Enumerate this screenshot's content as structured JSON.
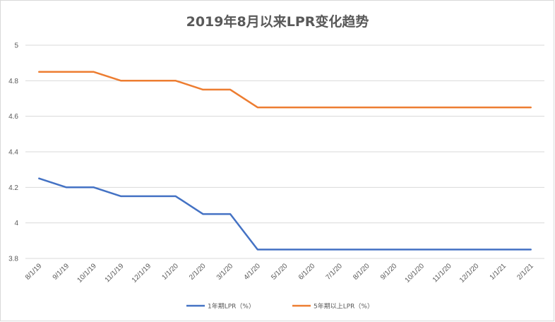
{
  "chart_data": {
    "type": "line",
    "title": "2019年8月以来LPR变化趋势",
    "xlabel": "",
    "ylabel": "",
    "x": [
      "8/1/19",
      "9/1/19",
      "10/1/19",
      "11/1/19",
      "12/1/19",
      "1/1/20",
      "2/1/20",
      "3/1/20",
      "4/1/20",
      "5/1/20",
      "6/1/20",
      "7/1/20",
      "8/1/20",
      "9/1/20",
      "10/1/20",
      "11/1/20",
      "12/1/20",
      "1/1/21",
      "2/1/21"
    ],
    "yticks": [
      "3.8",
      "4",
      "4.2",
      "4.4",
      "4.6",
      "4.8",
      "5"
    ],
    "ylim": [
      3.8,
      5
    ],
    "grid": true,
    "legend_position": "bottom",
    "series": [
      {
        "name": "1年期LPR（%）",
        "color": "#4472c4",
        "values": [
          4.25,
          4.2,
          4.2,
          4.15,
          4.15,
          4.15,
          4.05,
          4.05,
          3.85,
          3.85,
          3.85,
          3.85,
          3.85,
          3.85,
          3.85,
          3.85,
          3.85,
          3.85,
          3.85
        ]
      },
      {
        "name": "5年期以上LPR（%）",
        "color": "#ed7d31",
        "values": [
          4.85,
          4.85,
          4.85,
          4.8,
          4.8,
          4.8,
          4.75,
          4.75,
          4.65,
          4.65,
          4.65,
          4.65,
          4.65,
          4.65,
          4.65,
          4.65,
          4.65,
          4.65,
          4.65
        ]
      }
    ]
  }
}
